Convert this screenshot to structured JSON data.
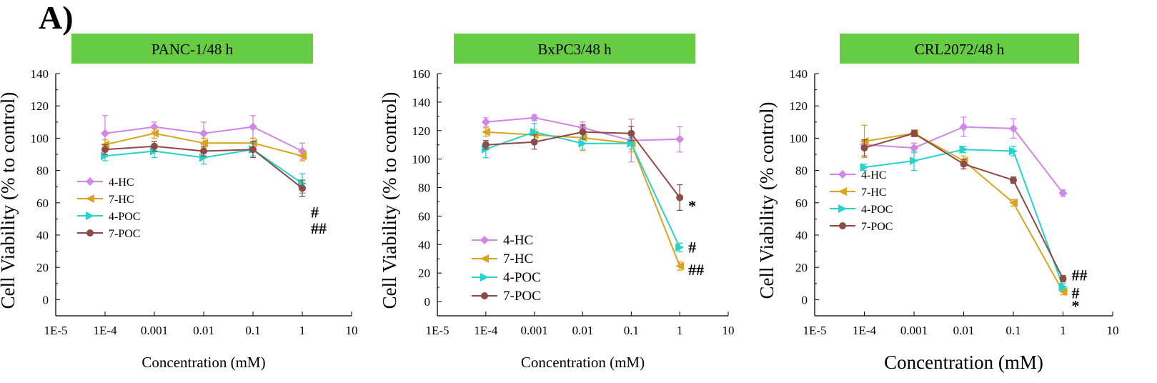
{
  "figure": {
    "panel_label": "A)"
  },
  "colors": {
    "banner": "#66cc44",
    "4-HC": "#d186e8",
    "7-HC": "#d9a520",
    "4-POC": "#26d3cc",
    "7-POC": "#8c4b45"
  },
  "chart_data": [
    {
      "type": "line",
      "title": "PANC-1/48 h",
      "xlabel": "Concentration (mM)",
      "ylabel": "Cell Viability (% to control)",
      "xscale": "log",
      "xlim": [
        1e-05,
        10
      ],
      "xticks": [
        "1E-5",
        "1E-4",
        "0.001",
        "0.01",
        "0.1",
        "1",
        "10"
      ],
      "ylim": [
        -10,
        140
      ],
      "yticks": [
        0,
        20,
        40,
        60,
        80,
        100,
        120,
        140
      ],
      "grid": false,
      "legend": "lower-left",
      "annotations": [
        {
          "text": "#",
          "x": 1,
          "y": 54
        },
        {
          "text": "##",
          "x": 1,
          "y": 44
        }
      ],
      "series": [
        {
          "name": "4-HC",
          "x": [
            0.0001,
            0.001,
            0.01,
            0.1,
            1
          ],
          "y": [
            103,
            107,
            103,
            107,
            92
          ],
          "err": [
            11,
            3,
            7,
            7,
            5
          ]
        },
        {
          "name": "7-HC",
          "x": [
            0.0001,
            0.001,
            0.01,
            0.1,
            1
          ],
          "y": [
            96,
            103,
            97,
            97,
            89
          ],
          "err": [
            3,
            3,
            3,
            3,
            3
          ]
        },
        {
          "name": "4-POC",
          "x": [
            0.0001,
            0.001,
            0.01,
            0.1,
            1
          ],
          "y": [
            89,
            92,
            88,
            93,
            72
          ],
          "err": [
            3,
            4,
            4,
            4,
            6
          ]
        },
        {
          "name": "7-POC",
          "x": [
            0.0001,
            0.001,
            0.01,
            0.1,
            1
          ],
          "y": [
            93,
            95,
            92,
            93,
            69
          ],
          "err": [
            3,
            3,
            3,
            5,
            5
          ]
        }
      ]
    },
    {
      "type": "line",
      "title": "BxPC3/48 h",
      "xlabel": "Concentration (mM)",
      "ylabel": "Cell Viability (% to control)",
      "xscale": "log",
      "xlim": [
        1e-05,
        10
      ],
      "xticks": [
        "1E-5",
        "1E-4",
        "0.001",
        "0.01",
        "0.1",
        "1",
        "10"
      ],
      "ylim": [
        -10,
        160
      ],
      "yticks": [
        0,
        20,
        40,
        60,
        80,
        100,
        120,
        140,
        160
      ],
      "grid": false,
      "legend": "lower-left",
      "annotations": [
        {
          "text": "*",
          "x": 1,
          "y": 67
        },
        {
          "text": "#",
          "x": 1,
          "y": 38
        },
        {
          "text": "##",
          "x": 1,
          "y": 22
        }
      ],
      "series": [
        {
          "name": "4-HC",
          "x": [
            0.0001,
            0.001,
            0.01,
            0.1,
            1
          ],
          "y": [
            126,
            129,
            122,
            113,
            114
          ],
          "err": [
            3,
            2,
            4,
            15,
            9
          ]
        },
        {
          "name": "7-HC",
          "x": [
            0.0001,
            0.001,
            0.01,
            0.1,
            1
          ],
          "y": [
            119,
            117,
            115,
            111,
            25
          ],
          "err": [
            3,
            4,
            9,
            6,
            3
          ]
        },
        {
          "name": "4-POC",
          "x": [
            0.0001,
            0.001,
            0.01,
            0.1,
            1
          ],
          "y": [
            107,
            119,
            111,
            111,
            38
          ],
          "err": [
            6,
            6,
            4,
            4,
            3
          ]
        },
        {
          "name": "7-POC",
          "x": [
            0.0001,
            0.001,
            0.01,
            0.1,
            1
          ],
          "y": [
            110,
            112,
            119,
            118,
            73
          ],
          "err": [
            3,
            5,
            5,
            5,
            9
          ]
        }
      ]
    },
    {
      "type": "line",
      "title": "CRL2072/48 h",
      "xlabel": "Concentration (mM)",
      "ylabel": "Cell Viability (% control)",
      "xscale": "log",
      "xlim": [
        1e-05,
        10
      ],
      "xticks": [
        "1E-5",
        "1E-4",
        "0.001",
        "0.01",
        "0.1",
        "1",
        "10"
      ],
      "ylim": [
        -10,
        140
      ],
      "yticks": [
        0,
        20,
        40,
        60,
        80,
        100,
        120,
        140
      ],
      "grid": false,
      "legend": "center-left",
      "annotations": [
        {
          "text": "##",
          "x": 1,
          "y": 15
        },
        {
          "text": "#",
          "x": 1,
          "y": 4
        },
        {
          "text": "*",
          "x": 1,
          "y": -4
        }
      ],
      "series": [
        {
          "name": "4-HC",
          "x": [
            0.0001,
            0.001,
            0.01,
            0.1,
            1
          ],
          "y": [
            96,
            94,
            107,
            106,
            66
          ],
          "err": [
            3,
            3,
            6,
            6,
            2
          ]
        },
        {
          "name": "7-HC",
          "x": [
            0.0001,
            0.001,
            0.01,
            0.1,
            1
          ],
          "y": [
            98,
            103,
            86,
            60,
            5
          ],
          "err": [
            10,
            2,
            3,
            2,
            2
          ]
        },
        {
          "name": "4-POC",
          "x": [
            0.0001,
            0.001,
            0.01,
            0.1,
            1
          ],
          "y": [
            82,
            86,
            93,
            92,
            8
          ],
          "err": [
            2,
            6,
            2,
            3,
            2
          ]
        },
        {
          "name": "7-POC",
          "x": [
            0.0001,
            0.001,
            0.01,
            0.1,
            1
          ],
          "y": [
            94,
            103,
            84,
            74,
            13
          ],
          "err": [
            5,
            2,
            3,
            2,
            2
          ]
        }
      ]
    }
  ]
}
